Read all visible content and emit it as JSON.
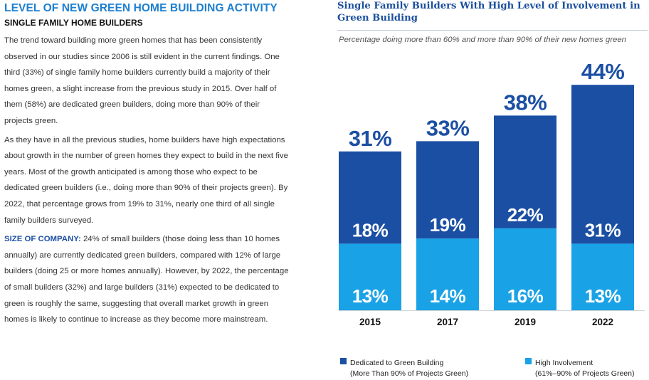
{
  "article": {
    "heading": "LEVEL OF NEW GREEN HOME BUILDING ACTIVITY",
    "subheading": "SINGLE FAMILY HOME BUILDERS",
    "paragraph1": "The trend toward building more green homes that has been consistently observed in our studies since 2006 is still evident in the current findings. One third (33%) of single family home builders currently build a majority of their homes green, a slight increase from the previous study in 2015. Over half of them (58%) are dedicated green builders, doing more than 90% of their projects green.",
    "paragraph2": "As they have in all the previous studies, home builders have high expectations about growth in the number of green homes they expect to build in the next five years. Most of the growth anticipated is among those who expect to be dedicated green builders (i.e., doing more than 90% of their projects green). By 2022, that percentage grows from 19% to 31%, nearly one third of all single family builders surveyed.",
    "paragraph3_lead": "SIZE OF COMPANY:",
    "paragraph3": " 24% of small builders (those doing less than 10 homes annually) are currently dedicated green builders, compared with 12% of large builders (doing 25 or more homes annually). However, by 2022, the percentage of small builders (32%) and large builders (31%) expected to be dedicated to green is roughly the same, suggesting that overall market growth in green homes is likely to continue to increase as they become more mainstream."
  },
  "colors": {
    "dedicated": "#1b4fa3",
    "high": "#1aa2e6",
    "heading": "#1c7fd0",
    "total_label": "#1b4fa3"
  },
  "chart_data": {
    "type": "bar",
    "stacked": true,
    "title": "Single Family Builders With High Level of Involvement in Green Building",
    "subtitle": "Percentage doing more than 60% and more than 90%  of their new homes green",
    "categories": [
      "2015",
      "2017",
      "2019",
      "2022"
    ],
    "series": [
      {
        "name": "Dedicated to Green Building (More Than 90% of Projects Green)",
        "values": [
          18,
          19,
          22,
          31
        ],
        "labels": [
          "18%",
          "19%",
          "22%",
          "31%"
        ]
      },
      {
        "name": "High Involvement (61%–90% of Projects Green)",
        "values": [
          13,
          14,
          16,
          13
        ],
        "labels": [
          "13%",
          "14%",
          "16%",
          "13%"
        ]
      }
    ],
    "totals": [
      31,
      33,
      38,
      44
    ],
    "total_labels": [
      "31%",
      "33%",
      "38%",
      "44%"
    ],
    "ylim": [
      0,
      44
    ],
    "grid": false,
    "legend_position": "bottom",
    "legend": [
      {
        "line1": "Dedicated to Green Building",
        "line2": "(More Than 90% of Projects Green)"
      },
      {
        "line1": "High Involvement",
        "line2": "(61%–90% of Projects Green)"
      }
    ]
  }
}
